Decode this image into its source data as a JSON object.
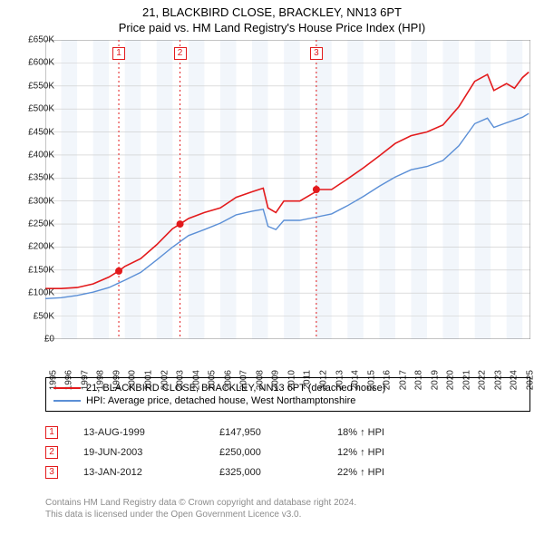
{
  "title": "21, BLACKBIRD CLOSE, BRACKLEY, NN13 6PT",
  "subtitle": "Price paid vs. HM Land Registry's House Price Index (HPI)",
  "chart": {
    "type": "line",
    "background_color": "#ffffff",
    "alt_band_color": "#f2f6fb",
    "x_years": [
      1995,
      1996,
      1997,
      1998,
      1999,
      2000,
      2001,
      2002,
      2003,
      2004,
      2005,
      2006,
      2007,
      2008,
      2009,
      2010,
      2011,
      2012,
      2013,
      2014,
      2015,
      2016,
      2017,
      2018,
      2019,
      2020,
      2021,
      2022,
      2023,
      2024,
      2025
    ],
    "xlim": [
      1995,
      2025.5
    ],
    "ylim": [
      0,
      650000
    ],
    "ytick_step": 50000,
    "ytick_labels": [
      "£0",
      "£50K",
      "£100K",
      "£150K",
      "£200K",
      "£250K",
      "£300K",
      "£350K",
      "£400K",
      "£450K",
      "£500K",
      "£550K",
      "£600K",
      "£650K"
    ],
    "grid_color": "#c9c9c9",
    "series": [
      {
        "name": "property",
        "label": "21, BLACKBIRD CLOSE, BRACKLEY, NN13 6PT (detached house)",
        "color": "#e31a1c",
        "width": 1.6,
        "points": [
          [
            1995.0,
            110000
          ],
          [
            1996.0,
            110000
          ],
          [
            1997.0,
            112000
          ],
          [
            1998.0,
            120000
          ],
          [
            1999.0,
            135000
          ],
          [
            1999.62,
            147950
          ],
          [
            2000.0,
            158000
          ],
          [
            2001.0,
            175000
          ],
          [
            2002.0,
            205000
          ],
          [
            2003.0,
            240000
          ],
          [
            2003.47,
            250000
          ],
          [
            2004.0,
            262000
          ],
          [
            2005.0,
            275000
          ],
          [
            2006.0,
            285000
          ],
          [
            2007.0,
            308000
          ],
          [
            2008.0,
            320000
          ],
          [
            2008.7,
            328000
          ],
          [
            2009.0,
            285000
          ],
          [
            2009.5,
            275000
          ],
          [
            2010.0,
            300000
          ],
          [
            2011.0,
            300000
          ],
          [
            2012.0,
            320000
          ],
          [
            2012.04,
            325000
          ],
          [
            2013.0,
            325000
          ],
          [
            2014.0,
            348000
          ],
          [
            2015.0,
            372000
          ],
          [
            2016.0,
            398000
          ],
          [
            2017.0,
            425000
          ],
          [
            2018.0,
            442000
          ],
          [
            2019.0,
            450000
          ],
          [
            2020.0,
            465000
          ],
          [
            2021.0,
            505000
          ],
          [
            2022.0,
            560000
          ],
          [
            2022.8,
            575000
          ],
          [
            2023.2,
            540000
          ],
          [
            2024.0,
            555000
          ],
          [
            2024.5,
            545000
          ],
          [
            2025.0,
            568000
          ],
          [
            2025.4,
            580000
          ]
        ]
      },
      {
        "name": "hpi",
        "label": "HPI: Average price, detached house, West Northamptonshire",
        "color": "#5b8fd6",
        "width": 1.4,
        "points": [
          [
            1995.0,
            88000
          ],
          [
            1996.0,
            90000
          ],
          [
            1997.0,
            95000
          ],
          [
            1998.0,
            102000
          ],
          [
            1999.0,
            112000
          ],
          [
            2000.0,
            128000
          ],
          [
            2001.0,
            145000
          ],
          [
            2002.0,
            172000
          ],
          [
            2003.0,
            200000
          ],
          [
            2004.0,
            225000
          ],
          [
            2005.0,
            238000
          ],
          [
            2006.0,
            252000
          ],
          [
            2007.0,
            270000
          ],
          [
            2008.0,
            278000
          ],
          [
            2008.7,
            282000
          ],
          [
            2009.0,
            245000
          ],
          [
            2009.5,
            238000
          ],
          [
            2010.0,
            258000
          ],
          [
            2011.0,
            258000
          ],
          [
            2012.0,
            265000
          ],
          [
            2013.0,
            272000
          ],
          [
            2014.0,
            290000
          ],
          [
            2015.0,
            310000
          ],
          [
            2016.0,
            332000
          ],
          [
            2017.0,
            352000
          ],
          [
            2018.0,
            368000
          ],
          [
            2019.0,
            375000
          ],
          [
            2020.0,
            388000
          ],
          [
            2021.0,
            420000
          ],
          [
            2022.0,
            468000
          ],
          [
            2022.8,
            480000
          ],
          [
            2023.2,
            460000
          ],
          [
            2024.0,
            470000
          ],
          [
            2025.0,
            482000
          ],
          [
            2025.4,
            490000
          ]
        ]
      }
    ],
    "sale_markers": [
      {
        "n": "1",
        "x": 1999.62,
        "y": 147950,
        "color": "#e31a1c"
      },
      {
        "n": "2",
        "x": 2003.47,
        "y": 250000,
        "color": "#e31a1c"
      },
      {
        "n": "3",
        "x": 2012.04,
        "y": 325000,
        "color": "#e31a1c"
      }
    ]
  },
  "legend": {
    "rows": [
      {
        "color": "#e31a1c",
        "label": "21, BLACKBIRD CLOSE, BRACKLEY, NN13 6PT (detached house)"
      },
      {
        "color": "#5b8fd6",
        "label": "HPI: Average price, detached house, West Northamptonshire"
      }
    ]
  },
  "sales": [
    {
      "n": "1",
      "color": "#e31a1c",
      "date": "13-AUG-1999",
      "price": "£147,950",
      "pct": "18% ↑ HPI"
    },
    {
      "n": "2",
      "color": "#e31a1c",
      "date": "19-JUN-2003",
      "price": "£250,000",
      "pct": "12% ↑ HPI"
    },
    {
      "n": "3",
      "color": "#e31a1c",
      "date": "13-JAN-2012",
      "price": "£325,000",
      "pct": "22% ↑ HPI"
    }
  ],
  "footer": {
    "line1": "Contains HM Land Registry data © Crown copyright and database right 2024.",
    "line2": "This data is licensed under the Open Government Licence v3.0."
  }
}
